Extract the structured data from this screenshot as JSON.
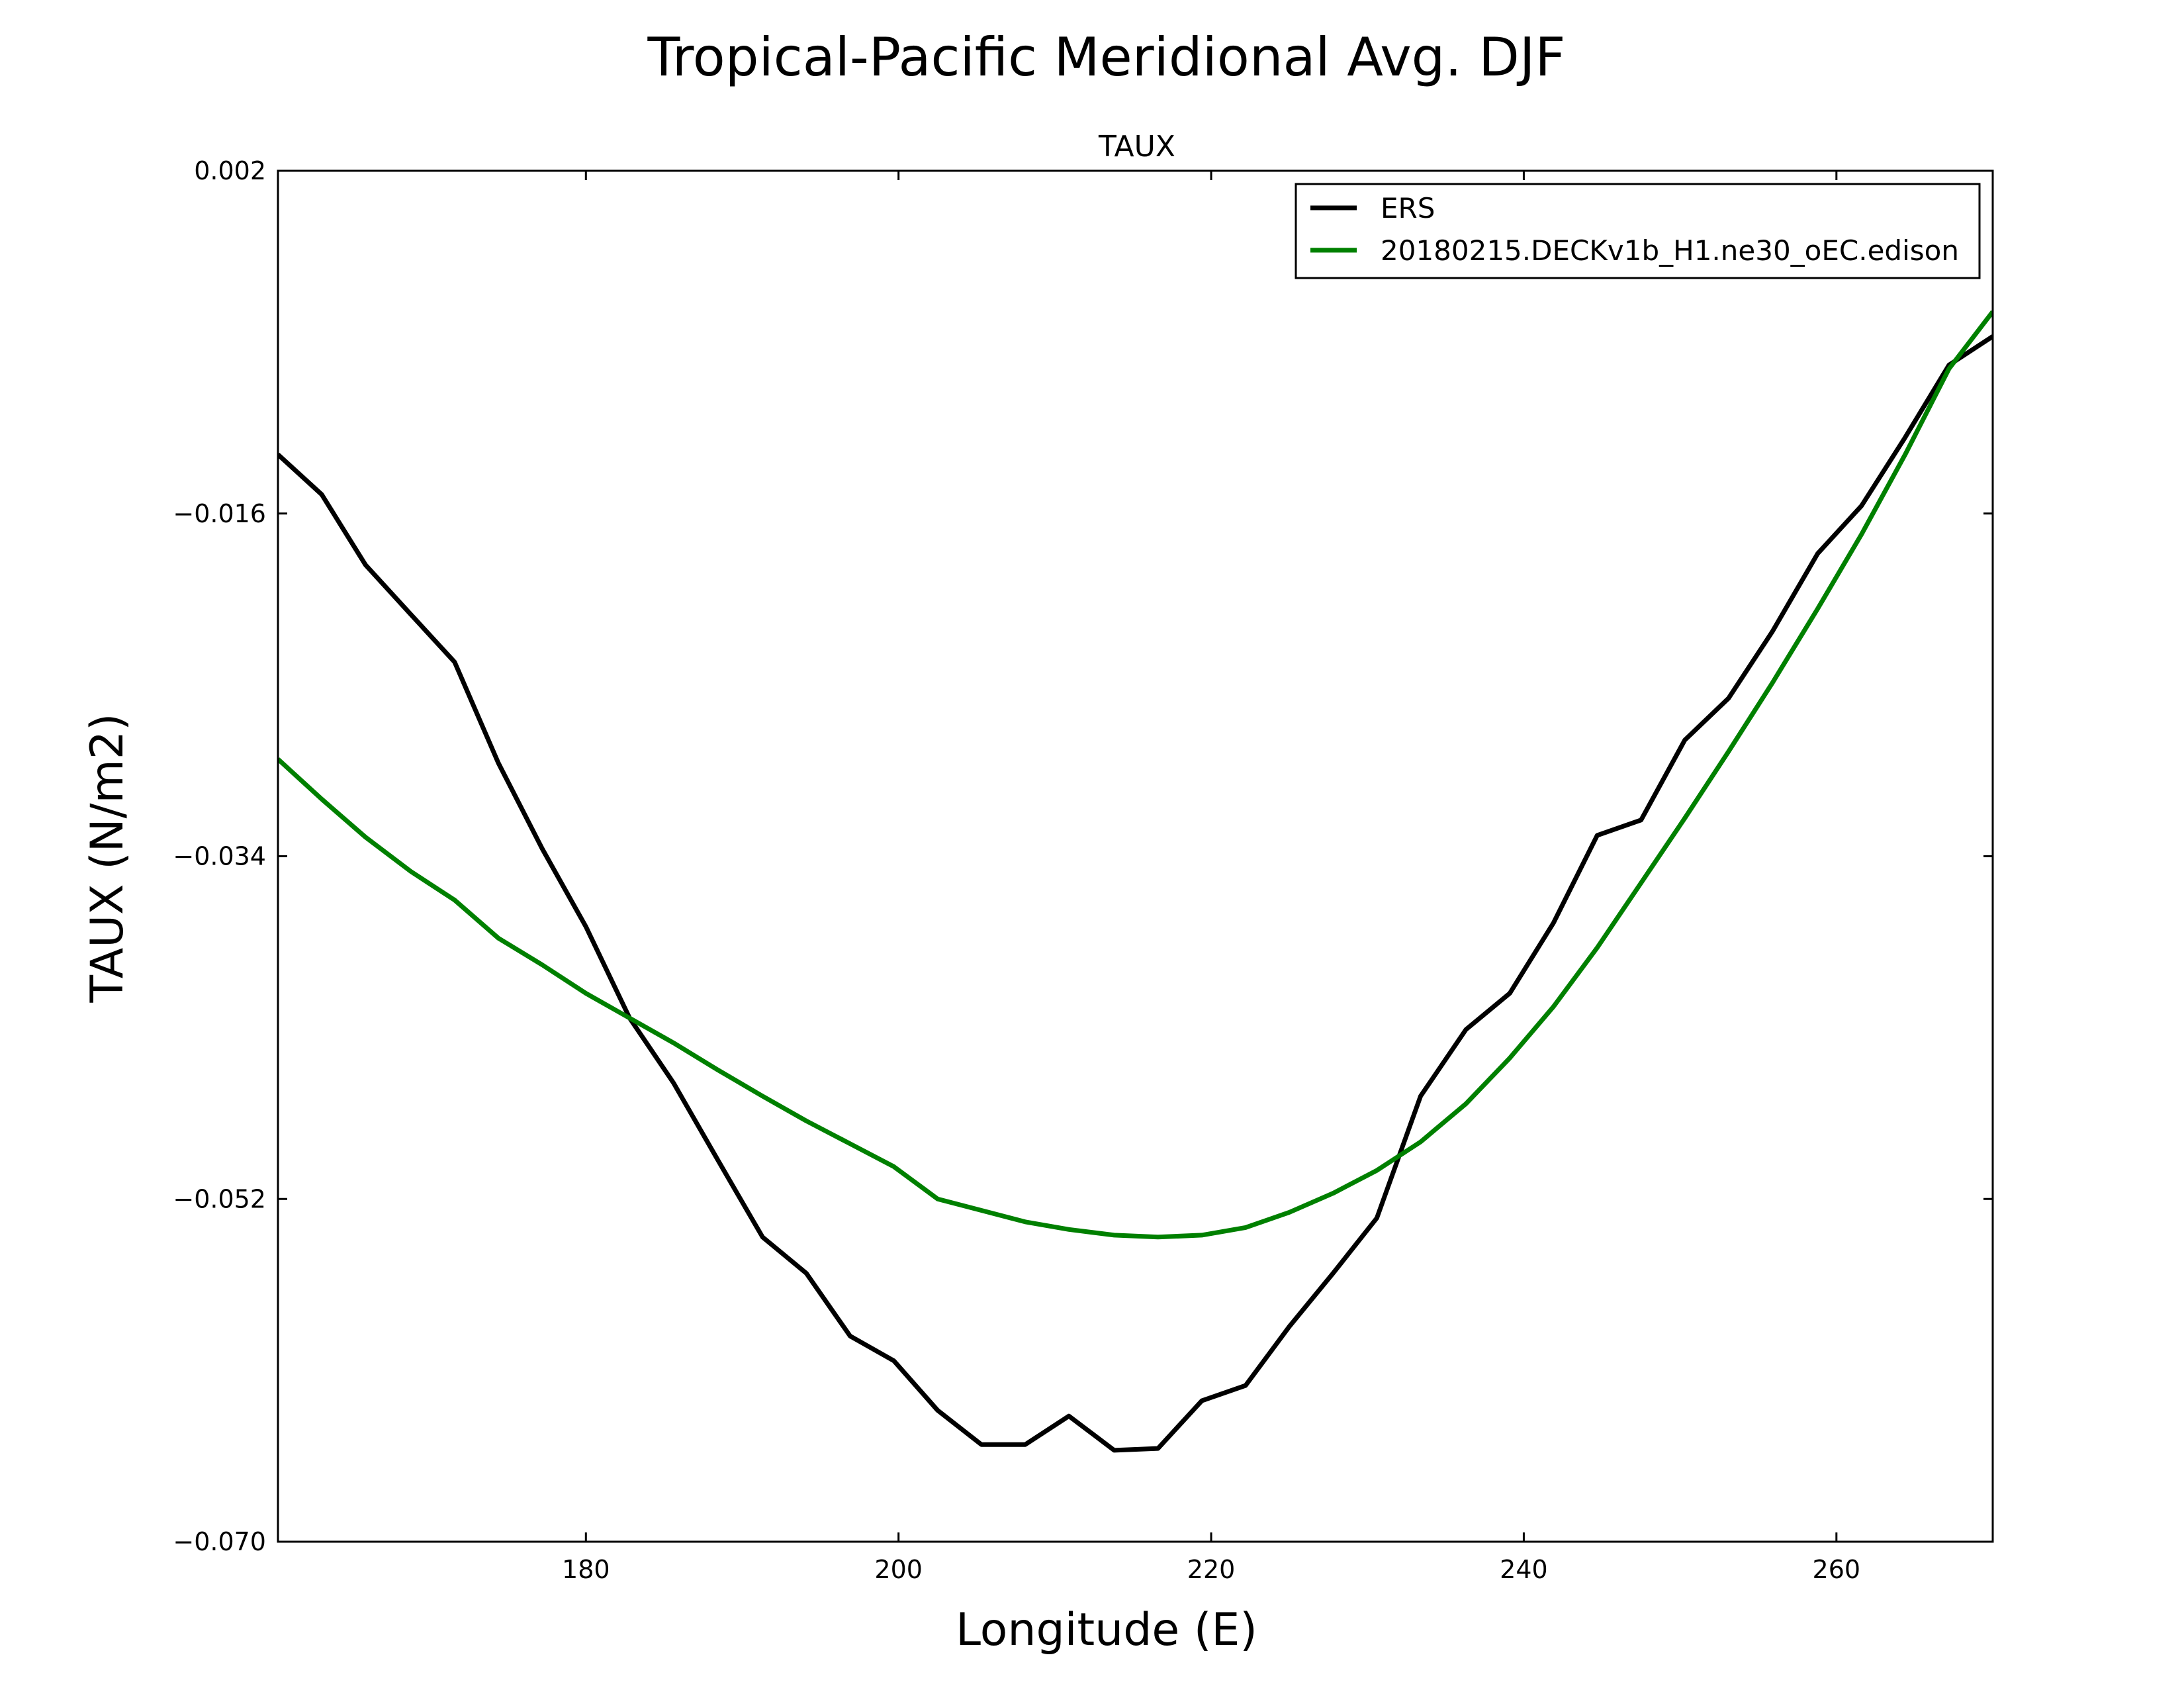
{
  "chart_data": {
    "type": "line",
    "title": "Tropical-Pacific Meridional Avg. DJF",
    "subtitle": "TAUX",
    "xlabel": "Longitude (E)",
    "ylabel": "TAUX (N/m2)",
    "xlim": [
      160.3,
      270
    ],
    "ylim": [
      -0.07,
      0.002
    ],
    "xticks": [
      180,
      200,
      220,
      240,
      260
    ],
    "xtick_labels": [
      "180",
      "200",
      "220",
      "240",
      "260"
    ],
    "yticks": [
      0.002,
      -0.016,
      -0.034,
      -0.052,
      -0.07
    ],
    "ytick_labels": [
      "0.002",
      "−0.016",
      "−0.034",
      "−0.052",
      "−0.070"
    ],
    "grid": false,
    "legend_position": "top-right",
    "series": [
      {
        "name": "ERS",
        "color": "#000000",
        "x": [
          160.3,
          163.1,
          165.9,
          168.8,
          171.6,
          174.4,
          177.2,
          180.0,
          182.8,
          185.6,
          188.4,
          191.3,
          194.1,
          196.9,
          199.7,
          202.5,
          205.3,
          208.1,
          210.9,
          213.8,
          216.6,
          219.4,
          222.2,
          225.0,
          227.8,
          230.6,
          233.4,
          236.3,
          239.1,
          241.9,
          244.7,
          247.5,
          250.3,
          253.1,
          255.9,
          258.8,
          261.6,
          264.4,
          267.2,
          270.0
        ],
        "y": [
          -0.0129,
          -0.015,
          -0.0187,
          -0.0213,
          -0.0238,
          -0.0291,
          -0.0336,
          -0.0377,
          -0.0425,
          -0.0459,
          -0.0499,
          -0.054,
          -0.0559,
          -0.0592,
          -0.0605,
          -0.0631,
          -0.0649,
          -0.0649,
          -0.0634,
          -0.0652,
          -0.0651,
          -0.0626,
          -0.0618,
          -0.0587,
          -0.0559,
          -0.053,
          -0.0466,
          -0.0431,
          -0.0412,
          -0.0375,
          -0.0329,
          -0.0321,
          -0.0279,
          -0.0257,
          -0.0222,
          -0.0181,
          -0.0156,
          -0.012,
          -0.0082,
          -0.0067
        ]
      },
      {
        "name": "20180215.DECKv1b_H1.ne30_oEC.edison",
        "color": "#008000",
        "x": [
          160.3,
          163.1,
          165.9,
          168.8,
          171.6,
          174.4,
          177.2,
          180.0,
          182.8,
          185.6,
          188.4,
          191.3,
          194.1,
          196.9,
          199.7,
          202.5,
          205.3,
          208.1,
          210.9,
          213.8,
          216.6,
          219.4,
          222.2,
          225.0,
          227.8,
          230.6,
          233.4,
          236.3,
          239.1,
          241.9,
          244.7,
          247.5,
          250.3,
          253.1,
          255.9,
          258.8,
          261.6,
          264.4,
          267.2,
          270.0
        ],
        "y": [
          -0.0289,
          -0.031,
          -0.033,
          -0.0348,
          -0.0363,
          -0.0383,
          -0.0397,
          -0.0412,
          -0.0425,
          -0.0438,
          -0.0452,
          -0.0466,
          -0.0479,
          -0.0491,
          -0.0503,
          -0.052,
          -0.0526,
          -0.0532,
          -0.0536,
          -0.0539,
          -0.054,
          -0.0539,
          -0.0535,
          -0.0527,
          -0.0517,
          -0.0505,
          -0.049,
          -0.047,
          -0.0446,
          -0.0419,
          -0.0388,
          -0.0354,
          -0.032,
          -0.0285,
          -0.0249,
          -0.021,
          -0.0171,
          -0.0129,
          -0.0084,
          -0.0054
        ]
      }
    ]
  }
}
